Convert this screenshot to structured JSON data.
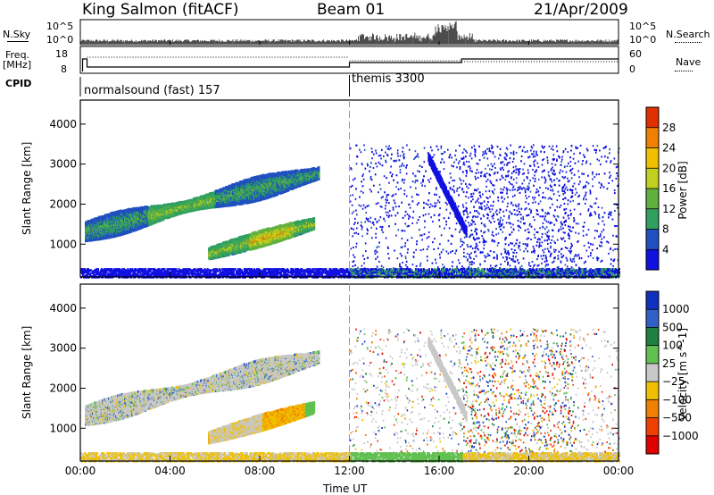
{
  "header": {
    "station": "King Salmon (fitACF)",
    "beam": "Beam 01",
    "date": "21/Apr/2009"
  },
  "top_panels": {
    "nsky_label": "N.Sky",
    "nsearch_label": "N.Search",
    "nsky_ticks": [
      "10^5",
      "10^0"
    ],
    "nsearch_ticks": [
      "10^5",
      "10^0"
    ],
    "freq_label": "Freq.",
    "freq_unit": "[MHz]",
    "freq_ticks": [
      "18",
      "8"
    ],
    "nave_label": "Nave",
    "nave_ticks": [
      "60",
      "0"
    ],
    "cpid_label": "CPID",
    "cpid_segments": [
      {
        "name": "normalsound (fast) 157",
        "start": 0.0,
        "end": 12.0
      },
      {
        "name": "themis 3300",
        "start": 12.0,
        "end": 24.0
      }
    ]
  },
  "chart_data": [
    {
      "type": "heatmap",
      "title": "",
      "ylabel": "Slant Range [km]",
      "xlabel": "",
      "xlim": [
        0,
        24
      ],
      "ylim": [
        180,
        4600
      ],
      "x_ticks": [
        "00:00",
        "04:00",
        "08:00",
        "12:00",
        "16:00",
        "20:00",
        "00:00"
      ],
      "y_ticks": [
        1000,
        2000,
        3000,
        4000
      ],
      "colorbar": {
        "label": "Power [dB]",
        "ticks": [
          4,
          8,
          12,
          16,
          20,
          24,
          28
        ],
        "colors": [
          "#1010e0",
          "#2050c0",
          "#30a060",
          "#60b040",
          "#c0d020",
          "#f0c000",
          "#f08000",
          "#e03000"
        ]
      },
      "regions": [
        {
          "t": [
            0.2,
            10.5
          ],
          "r": [
            1000,
            2900
          ],
          "value": 10
        },
        {
          "t": [
            4.2,
            10.5
          ],
          "r": [
            900,
            1600
          ],
          "value": 14
        },
        {
          "t": [
            12.0,
            24.0
          ],
          "r": [
            200,
            3500
          ],
          "value": 4
        }
      ]
    },
    {
      "type": "heatmap",
      "title": "",
      "ylabel": "Slant Range [km]",
      "xlabel": "Time UT",
      "xlim": [
        0,
        24
      ],
      "ylim": [
        180,
        4600
      ],
      "x_ticks": [
        "00:00",
        "04:00",
        "08:00",
        "12:00",
        "16:00",
        "20:00",
        "00:00"
      ],
      "y_ticks": [
        1000,
        2000,
        3000,
        4000
      ],
      "colorbar": {
        "label": "Velocity [m s^-1]",
        "ticks": [
          "1000",
          "500",
          "100",
          "25",
          "−25",
          "−100",
          "−500",
          "−1000"
        ],
        "colors": [
          "#1030c0",
          "#3060c8",
          "#208040",
          "#60c050",
          "#c8c8c8",
          "#f0c000",
          "#f08000",
          "#f04000",
          "#e00000"
        ]
      },
      "regions": [
        {
          "t": [
            0.2,
            10.5
          ],
          "r": [
            1000,
            2900
          ],
          "value": 0
        },
        {
          "t": [
            5.7,
            10.2
          ],
          "r": [
            750,
            1650
          ],
          "value": -150
        },
        {
          "t": [
            12.0,
            24.0
          ],
          "r": [
            200,
            3500
          ],
          "value": 0
        }
      ]
    }
  ]
}
